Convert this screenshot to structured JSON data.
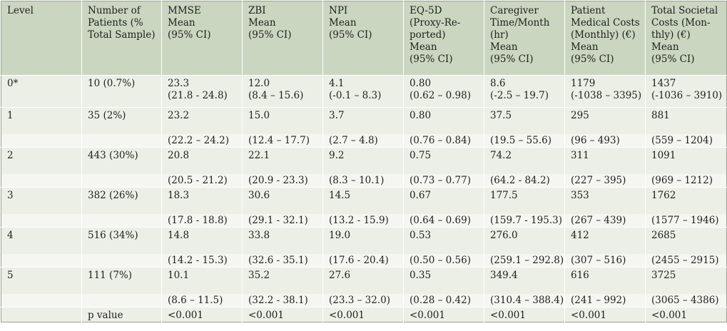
{
  "header": {
    "level": "Level",
    "patients": [
      "Number of",
      "Patients (%",
      "Total Sample)"
    ],
    "mmse": [
      "MMSE",
      "Mean",
      "(95% CI)"
    ],
    "zbi": [
      "ZBI",
      "Mean",
      "(95% CI)"
    ],
    "npi": [
      "NPI",
      "Mean",
      "(95% CI)"
    ],
    "eq5d": [
      "EQ-5D",
      "(Proxy-Re-",
      "ported)",
      "Mean",
      "(95% CI)"
    ],
    "caregiver": [
      "Caregiver",
      "Time/Month",
      "(hr)",
      "Mean",
      "(95% CI)"
    ],
    "medical": [
      "Patient",
      "Medical Costs",
      "(Monthly) (€)",
      "Mean",
      "(95% CI)"
    ],
    "societal": [
      "Total Societal",
      "Costs (Mon-",
      "thly) (€)",
      "Mean",
      "(95% CI)"
    ]
  },
  "rows": [
    {
      "level": "0*",
      "patients": "10 (0.7%)",
      "mmse": [
        "23.3",
        "(21.8 - 24.8)"
      ],
      "zbi": [
        "12.0",
        "(8.4 – 15.6)"
      ],
      "npi": [
        "4.1",
        "(-0.1 – 8.3)"
      ],
      "eq5d": [
        "0.80",
        "(0.62 – 0.98)"
      ],
      "caregiver": [
        "8.6",
        "(-2.5 – 19.7)"
      ],
      "medical": [
        "1179",
        "(-1038 – 3395)"
      ],
      "societal": [
        "1437",
        "(-1036 – 3910)"
      ]
    },
    {
      "level": "1",
      "patients": "35 (2%)",
      "mmse": [
        "23.2",
        "(22.2 – 24.2)"
      ],
      "zbi": [
        "15.0",
        "(12.4 – 17.7)"
      ],
      "npi": [
        "3.7",
        "(2.7 – 4.8)"
      ],
      "eq5d": [
        "0.80",
        "(0.76 – 0.84)"
      ],
      "caregiver": [
        "37.5",
        "(19.5 – 55.6)"
      ],
      "medical": [
        "295",
        "(96 – 493)"
      ],
      "societal": [
        "881",
        "(559 – 1204)"
      ]
    },
    {
      "level": "2",
      "patients": "443 (30%)",
      "mmse": [
        "20.8",
        "(20.5 - 21.2)"
      ],
      "zbi": [
        "22.1",
        "(20.9 - 23.3)"
      ],
      "npi": [
        "9.2",
        "(8.3 – 10.1)"
      ],
      "eq5d": [
        "0.75",
        "(0.73 – 0.77)"
      ],
      "caregiver": [
        "74.2",
        "(64.2 - 84.2)"
      ],
      "medical": [
        "311",
        "(227 – 395)"
      ],
      "societal": [
        "1091",
        "(969 – 1212)"
      ]
    },
    {
      "level": "3",
      "patients": "382 (26%)",
      "mmse": [
        "18.3",
        "(17.8 - 18.8)"
      ],
      "zbi": [
        "30.6",
        "(29.1 - 32.1)"
      ],
      "npi": [
        "14.5",
        "(13.2 - 15.9)"
      ],
      "eq5d": [
        "0.67",
        "(0.64 – 0.69)"
      ],
      "caregiver": [
        "177.5",
        "(159.7 - 195.3)"
      ],
      "medical": [
        "353",
        "(267 – 439)"
      ],
      "societal": [
        "1762",
        "(1577 – 1946)"
      ]
    },
    {
      "level": "4",
      "patients": "516 (34%)",
      "mmse": [
        "14.8",
        "(14.2 - 15.3)"
      ],
      "zbi": [
        "33.8",
        "(32.6 - 35.1)"
      ],
      "npi": [
        "19.0",
        "(17.6 - 20.4)"
      ],
      "eq5d": [
        "0.53",
        "(0.50 – 0.56)"
      ],
      "caregiver": [
        "276.0",
        "(259.1 – 292.8)"
      ],
      "medical": [
        "412",
        "(307 – 516)"
      ],
      "societal": [
        "2685",
        "(2455 – 2915)"
      ]
    },
    {
      "level": "5",
      "patients": "111 (7%)",
      "mmse": [
        "10.1",
        "(8.6 – 11.5)"
      ],
      "zbi": [
        "35.2",
        "(32.2 - 38.1)"
      ],
      "npi": [
        "27.6",
        "(23.3 – 32.0)"
      ],
      "eq5d": [
        "0.35",
        "(0.28 – 0.42)"
      ],
      "caregiver": [
        "349.4",
        "(310.4 – 388.4)"
      ],
      "medical": [
        "616",
        "(241 – 992)"
      ],
      "societal": [
        "3725",
        "(3065 – 4386)"
      ]
    }
  ],
  "pvalue": {
    "label": "p value",
    "mmse": "<0.001",
    "zbi": "<0.001",
    "npi": "<0.001",
    "eq5d": "<0.001",
    "caregiver": "<0.001",
    "medical": "<0.001",
    "societal": "<0.001"
  },
  "colors": {
    "header_bg": "#cbd6c0",
    "row_bg": "#ecefe6",
    "ci_row_bg": "#f5f6f1",
    "border": "#9aa096"
  }
}
